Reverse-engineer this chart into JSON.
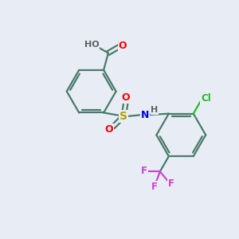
{
  "bg_color": "#e8edf5",
  "bond_color": "#4a7a6a",
  "bond_width": 1.6,
  "atom_colors": {
    "O": "#ff0000",
    "S": "#b8a000",
    "N": "#0000ee",
    "H": "#606060",
    "Cl": "#22bb22",
    "F": "#cc44cc"
  },
  "figsize": [
    3.0,
    3.0
  ],
  "dpi": 100
}
